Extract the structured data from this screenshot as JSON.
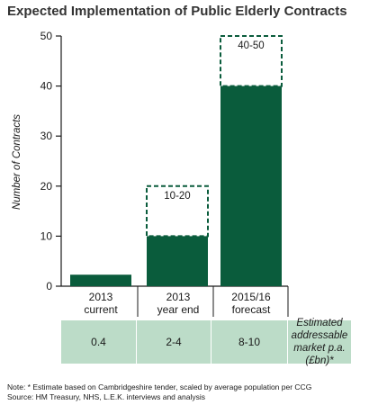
{
  "title": "Expected Implementation of Public Elderly Contracts",
  "chart_data": {
    "type": "bar",
    "title": "Expected Implementation of Public Elderly Contracts",
    "ylabel": "Number of Contracts",
    "xlabel": "",
    "ylim": [
      0,
      50
    ],
    "yticks": [
      0,
      10,
      20,
      30,
      40,
      50
    ],
    "categories": [
      {
        "line1": "2013",
        "line2": "current"
      },
      {
        "line1": "2013",
        "line2": "year end"
      },
      {
        "line1": "2015/16",
        "line2": "forecast"
      }
    ],
    "values": [
      2.3,
      10,
      40
    ],
    "range_max": [
      null,
      20,
      50
    ],
    "range_labels": [
      "",
      "10-20",
      "40-50"
    ],
    "bar_color": "#0a5c3c",
    "grid": false
  },
  "market_table": {
    "values": [
      "0.4",
      "2-4",
      "8-10"
    ],
    "label_lines": [
      "Estimated",
      "addressable",
      "market p.a.",
      "(£bn)*"
    ],
    "fill_color": "#bcdcc8"
  },
  "notes": {
    "line1": "Note:  * Estimate based on Cambridgeshire tender, scaled by average population per CCG",
    "line2": "Source: HM Treasury, NHS, L.E.K. interviews and analysis"
  }
}
